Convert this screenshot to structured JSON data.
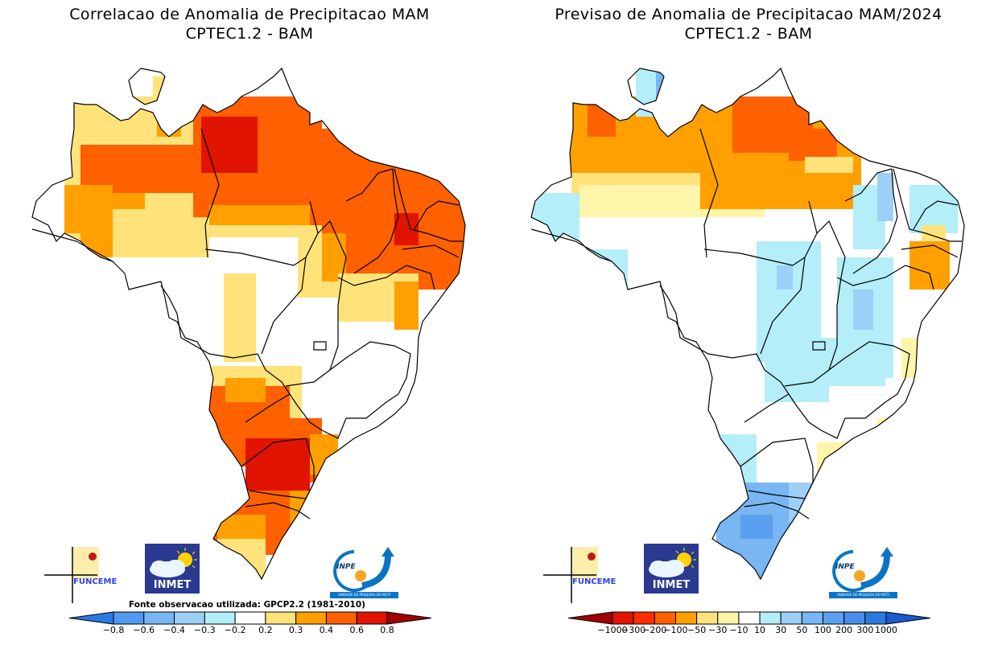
{
  "panels": [
    {
      "id": "left",
      "title_line1": "Correlacao de Anomalia de Precipitacao MAM",
      "title_line2": "CPTEC1.2 - BAM",
      "source_note": "Fonte observacao utilizada: GPCP2.2 (1981-2010)",
      "colorbar": {
        "ticks": [
          "-0.8",
          "-0.6",
          "-0.4",
          "-0.3",
          "-0.2",
          "0.2",
          "0.3",
          "0.4",
          "0.6",
          "0.8"
        ],
        "colors": [
          "#2a7ae2",
          "#4e9aee",
          "#78b6f4",
          "#9dd0f8",
          "#b4eef8",
          "#ffffff",
          "#ffe37a",
          "#ffa000",
          "#ff6000",
          "#e01400",
          "#a00000"
        ]
      }
    },
    {
      "id": "right",
      "title_line1": "Previsao de Anomalia de Precipitacao MAM/2024",
      "title_line2": "CPTEC1.2 - BAM",
      "colorbar": {
        "ticks": [
          "-1000",
          "-300",
          "-200",
          "-100",
          "-50",
          "-30",
          "-10",
          "10",
          "30",
          "50",
          "100",
          "200",
          "300",
          "1000"
        ],
        "colors": [
          "#a00000",
          "#e01400",
          "#ff3000",
          "#ff6000",
          "#ffa000",
          "#ffe37a",
          "#fff5aa",
          "#ffffff",
          "#b4eef8",
          "#9dd0f8",
          "#78b6f4",
          "#5aa0ee",
          "#4a8cea",
          "#2a7ae2",
          "#1a5ad0"
        ]
      }
    }
  ],
  "logos": {
    "funceme": "FUNCEME",
    "inmet": "INMET",
    "inpe": "INPE",
    "inpe_caption": "UNIDADE DE PESQUISA DO MCTI"
  },
  "chart_data": [
    {
      "type": "heatmap",
      "title": "Correlacao de Anomalia de Precipitacao MAM",
      "subtitle": "CPTEC1.2 - BAM",
      "region": "Brazil",
      "legend_position": "bottom",
      "color_levels": [
        -0.8,
        -0.6,
        -0.4,
        -0.3,
        -0.2,
        0.2,
        0.3,
        0.4,
        0.6,
        0.8
      ],
      "note": "Fonte observacao utilizada: GPCP2.2 (1981-2010)",
      "regions_summary": {
        "North (Amazonas/Para)": "0.4 to 0.8, strongest over central Para",
        "Northeast": "0.4 to 0.8, peak in Piaui/Ceara border",
        "Center-West": "mostly below 0.2, strip of 0.2-0.3 in Mato Grosso",
        "Southeast": "mostly below 0.2",
        "South (Parana/SC)": "0.6 to 0.8+",
        "Rio Grande do Sul": "0.2 to 0.6"
      }
    },
    {
      "type": "heatmap",
      "title": "Previsao de Anomalia de Precipitacao MAM/2024",
      "subtitle": "CPTEC1.2 - BAM",
      "region": "Brazil",
      "legend_position": "bottom",
      "color_levels": [
        -1000,
        -300,
        -200,
        -100,
        -50,
        -30,
        -10,
        10,
        30,
        50,
        100,
        200,
        300,
        1000
      ],
      "regions_summary": {
        "North (Amazonas/Para/Amapa)": "-200 to -50 (negative anomalies)",
        "Roraima": "10 to 100",
        "Western Amazon/Acre": "10 to 30",
        "Northeast interior": "10 to 50",
        "East coast (Pernambuco/Alagoas)": "-100 to -30",
        "Center-West / Southeast": "-10 to 30",
        "Rio Grande do Sul": "50 to 200"
      }
    }
  ]
}
